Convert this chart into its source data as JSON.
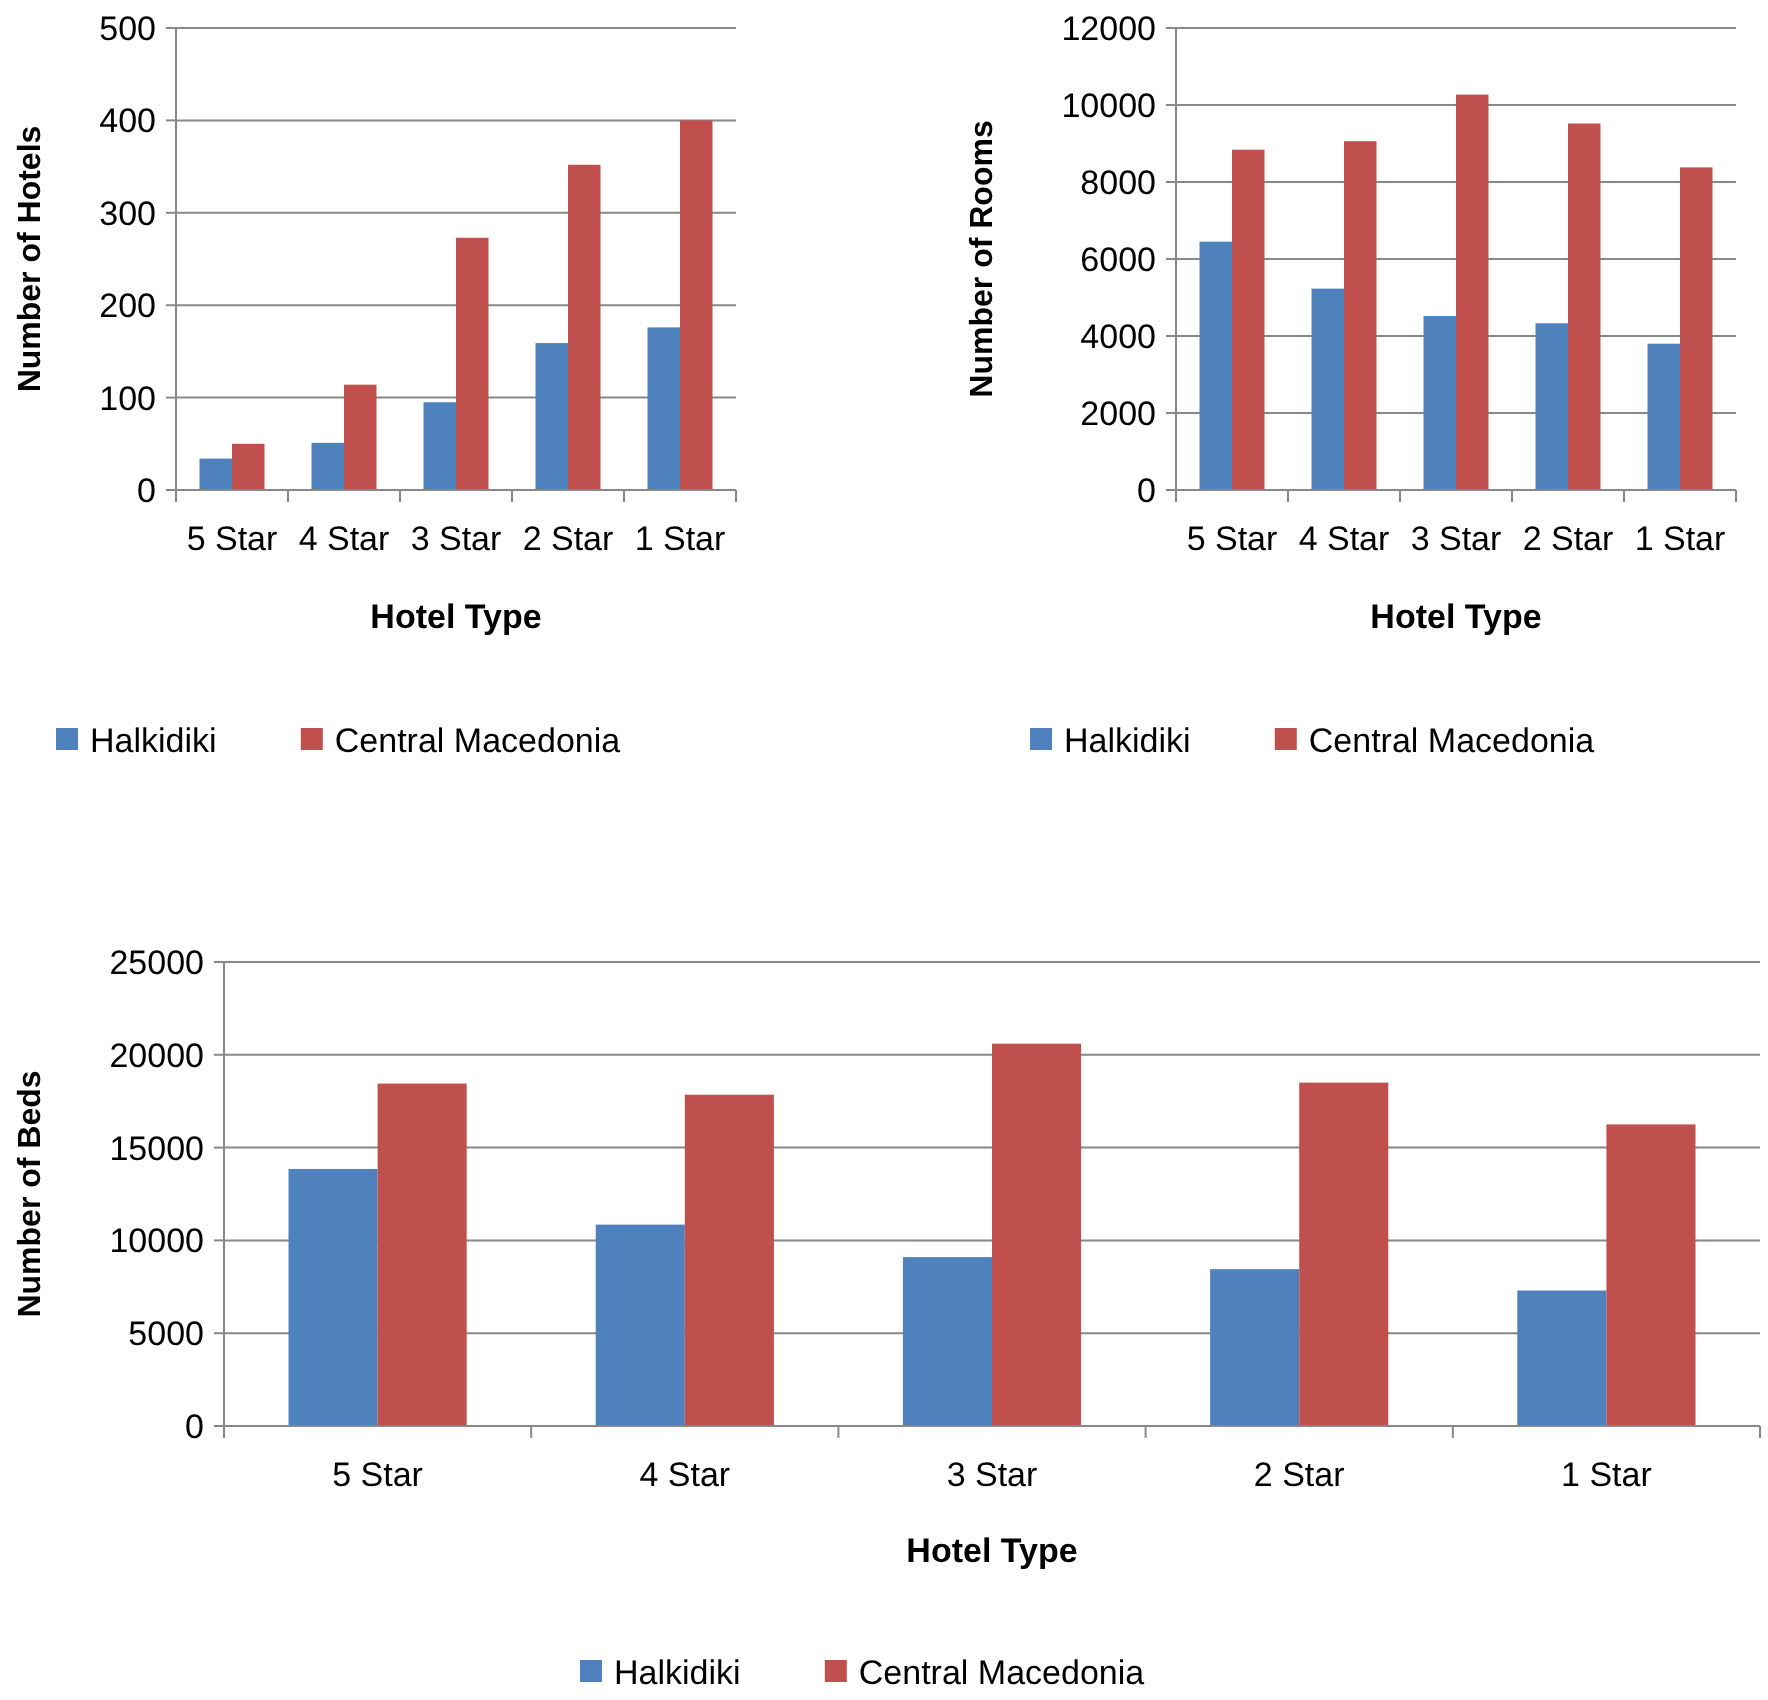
{
  "chart_data": [
    {
      "type": "bar",
      "categories": [
        "5 Star",
        "4 Star",
        "3 Star",
        "2 Star",
        "1 Star"
      ],
      "xlabel": "Hotel Type",
      "ylabel": "Number of Hotels",
      "ylim": [
        0,
        500
      ],
      "yticks": [
        0,
        100,
        200,
        300,
        400,
        500
      ],
      "grid": "y",
      "legend": "bottom",
      "series": [
        {
          "name": "Halkidiki",
          "color": "#4f81bd",
          "values": [
            34,
            51,
            95,
            159,
            176
          ]
        },
        {
          "name": "Central Macedonia",
          "color": "#c0504d",
          "values": [
            50,
            114,
            273,
            352,
            400
          ]
        }
      ]
    },
    {
      "type": "bar",
      "categories": [
        "5 Star",
        "4 Star",
        "3 Star",
        "2 Star",
        "1 Star"
      ],
      "xlabel": "Hotel Type",
      "ylabel": "Number of Rooms",
      "ylim": [
        0,
        12000
      ],
      "yticks": [
        0,
        2000,
        4000,
        6000,
        8000,
        10000,
        12000
      ],
      "grid": "y",
      "legend": "bottom",
      "series": [
        {
          "name": "Halkidiki",
          "color": "#4f81bd",
          "values": [
            6450,
            5230,
            4520,
            4330,
            3800
          ]
        },
        {
          "name": "Central Macedonia",
          "color": "#c0504d",
          "values": [
            8840,
            9060,
            10270,
            9520,
            8380
          ]
        }
      ]
    },
    {
      "type": "bar",
      "categories": [
        "5 Star",
        "4 Star",
        "3 Star",
        "2 Star",
        "1 Star"
      ],
      "xlabel": "Hotel Type",
      "ylabel": "Number of Beds",
      "ylim": [
        0,
        25000
      ],
      "yticks": [
        0,
        5000,
        10000,
        15000,
        20000,
        25000
      ],
      "grid": "y",
      "legend": "bottom",
      "series": [
        {
          "name": "Halkidiki",
          "color": "#4f81bd",
          "values": [
            13850,
            10850,
            9100,
            8450,
            7300
          ]
        },
        {
          "name": "Central Macedonia",
          "color": "#c0504d",
          "values": [
            18450,
            17850,
            20600,
            18500,
            16250
          ]
        }
      ]
    }
  ]
}
